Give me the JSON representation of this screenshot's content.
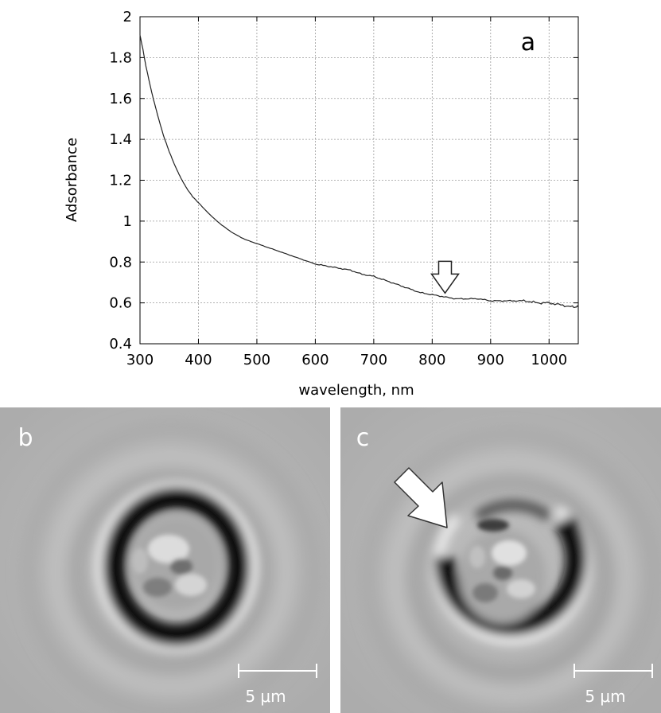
{
  "chart_data": {
    "type": "line",
    "panel_label": "a",
    "xlabel": "wavelength, nm",
    "ylabel": "Adsorbance",
    "xlim": [
      300,
      1050
    ],
    "ylim": [
      0.4,
      2.0
    ],
    "xticks": [
      300,
      400,
      500,
      600,
      700,
      800,
      900,
      1000
    ],
    "yticks": [
      0.4,
      0.6,
      0.8,
      1.0,
      1.2,
      1.4,
      1.6,
      1.8,
      2.0
    ],
    "ytick_labels": [
      "0.4",
      "0.6",
      "0.8",
      "1",
      "1.2",
      "1.4",
      "1.6",
      "1.8",
      "2"
    ],
    "grid": true,
    "line_color": "#222222",
    "series": [
      {
        "x": [
          300,
          305,
          310,
          320,
          330,
          340,
          350,
          360,
          370,
          380,
          390,
          400,
          420,
          440,
          460,
          480,
          500,
          520,
          540,
          560,
          580,
          600,
          620,
          640,
          660,
          680,
          700,
          720,
          740,
          760,
          780,
          800,
          820,
          840,
          860,
          880,
          900,
          920,
          940,
          960,
          980,
          1000,
          1020,
          1040,
          1050
        ],
        "y": [
          1.91,
          1.84,
          1.76,
          1.63,
          1.52,
          1.42,
          1.34,
          1.27,
          1.21,
          1.16,
          1.12,
          1.09,
          1.03,
          0.98,
          0.94,
          0.91,
          0.89,
          0.87,
          0.85,
          0.83,
          0.81,
          0.79,
          0.78,
          0.77,
          0.76,
          0.74,
          0.73,
          0.71,
          0.69,
          0.67,
          0.65,
          0.64,
          0.63,
          0.62,
          0.62,
          0.62,
          0.61,
          0.61,
          0.61,
          0.61,
          0.6,
          0.6,
          0.59,
          0.58,
          0.58
        ]
      }
    ],
    "annotation": {
      "type": "down-arrow",
      "x": 822,
      "y": 0.64
    }
  },
  "panels": {
    "b": {
      "label": "b",
      "scale_bar": "5 μm"
    },
    "c": {
      "label": "c",
      "scale_bar": "5 μm"
    }
  }
}
